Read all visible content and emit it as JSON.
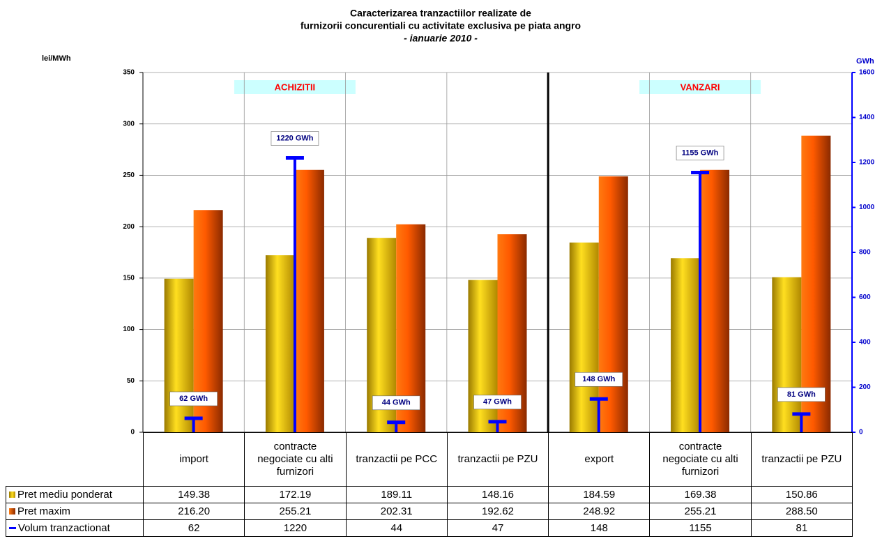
{
  "chart_data": {
    "type": "bar",
    "title": [
      "Caracterizarea tranzactiilor realizate de",
      "furnizorii concurentiali cu activitate exclusiva pe piata angro"
    ],
    "subtitle": "- ianuarie 2010 -",
    "y_label": "lei/MWh",
    "y2_label": "GWh",
    "annotations": [
      "ACHIZITII",
      "VANZARI"
    ],
    "categories": [
      "import",
      "contracte negociate cu alti furnizori",
      "tranzactii pe PCC",
      "tranzactii pe PZU",
      "export",
      "contracte negociate cu alti furnizori",
      "tranzactii pe PZU"
    ],
    "series": [
      {
        "name": "Pret mediu ponderat",
        "color": "#e6b800",
        "values": [
          149.38,
          172.19,
          189.11,
          148.16,
          184.59,
          169.38,
          150.86
        ]
      },
      {
        "name": "Pret maxim",
        "color": "#ff6600",
        "values": [
          216.2,
          255.21,
          202.31,
          192.62,
          248.92,
          255.21,
          288.5
        ],
        "value_labels": [
          "216.20",
          "255.21",
          "202.31",
          "192.62",
          "248.92",
          "255.21",
          "288.50"
        ]
      },
      {
        "name": "Volum tranzactionat",
        "color": "#0000ff",
        "axis": "y2",
        "values": [
          62,
          1220,
          44,
          47,
          148,
          1155,
          81
        ],
        "value_labels": [
          "62 GWh",
          "1220 GWh",
          "44 GWh",
          "47 GWh",
          "148 GWh",
          "1155 GWh",
          "81 GWh"
        ]
      }
    ],
    "ylim": [
      0,
      350
    ],
    "yticks": [
      0,
      50,
      100,
      150,
      200,
      250,
      300,
      350
    ],
    "y2lim": [
      0,
      1600
    ],
    "y2ticks": [
      0,
      200,
      400,
      600,
      800,
      1000,
      1200,
      1400,
      1600
    ],
    "grid": true
  }
}
